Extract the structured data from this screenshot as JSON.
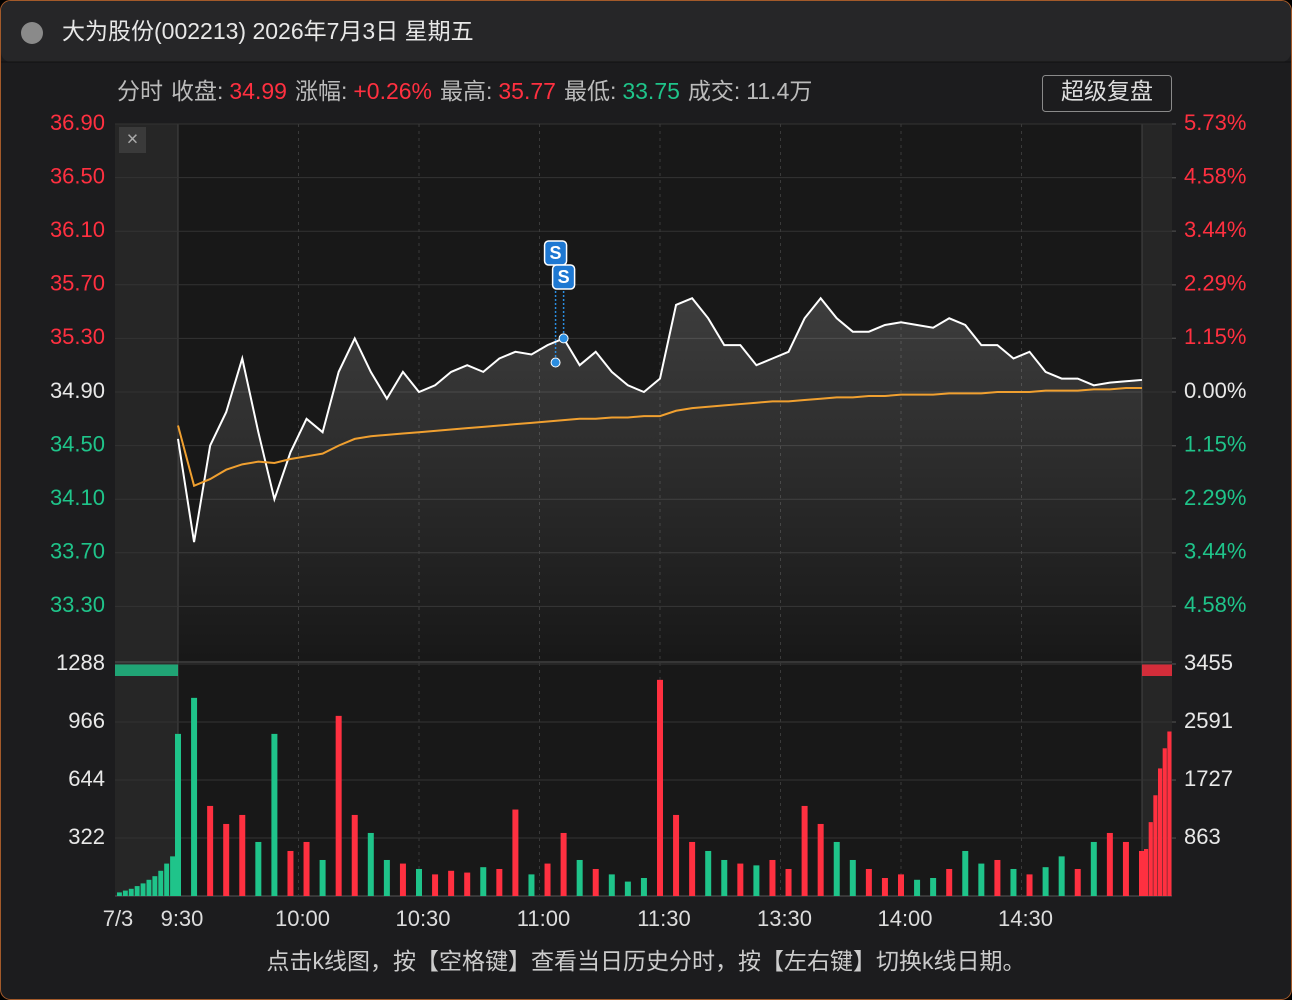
{
  "header": {
    "title": "大为股份(002213) 2026年7月3日 星期五"
  },
  "info": {
    "mode": "分时",
    "items": [
      {
        "label": "收盘:",
        "value": "34.99",
        "color": "#ff3040"
      },
      {
        "label": "涨幅:",
        "value": "+0.26%",
        "color": "#ff3040"
      },
      {
        "label": "最高:",
        "value": "35.77",
        "color": "#ff3040"
      },
      {
        "label": "最低:",
        "value": "33.75",
        "color": "#1fc48a"
      },
      {
        "label": "成交:",
        "value": "11.4万",
        "color": "#bbbbbb"
      }
    ]
  },
  "button": "超级复盘",
  "footer": "点击k线图，按【空格键】查看当日历史分时，按【左右键】切换k线日期。",
  "chart_data": [
    {
      "type": "line",
      "date_label": "7/3",
      "x": [
        "9:30",
        "9:34",
        "9:38",
        "9:42",
        "9:46",
        "9:50",
        "9:54",
        "9:58",
        "10:02",
        "10:06",
        "10:10",
        "10:14",
        "10:18",
        "10:22",
        "10:26",
        "10:30",
        "10:34",
        "10:38",
        "10:42",
        "10:46",
        "10:50",
        "10:54",
        "10:58",
        "11:02",
        "11:06",
        "11:10",
        "11:14",
        "11:18",
        "11:22",
        "11:26",
        "11:30",
        "13:04",
        "13:08",
        "13:12",
        "13:16",
        "13:20",
        "13:24",
        "13:28",
        "13:32",
        "13:36",
        "13:40",
        "13:44",
        "13:48",
        "13:52",
        "13:56",
        "14:00",
        "14:04",
        "14:08",
        "14:12",
        "14:16",
        "14:20",
        "14:24",
        "14:28",
        "14:32",
        "14:36",
        "14:40",
        "14:44",
        "14:48",
        "14:52",
        "14:56",
        "15:00"
      ],
      "series": [
        {
          "color": "#ffffff",
          "values": [
            34.55,
            33.78,
            34.5,
            34.75,
            35.15,
            34.6,
            34.1,
            34.45,
            34.7,
            34.6,
            35.05,
            35.3,
            35.05,
            34.85,
            35.05,
            34.9,
            34.95,
            35.05,
            35.1,
            35.05,
            35.15,
            35.2,
            35.18,
            35.25,
            35.3,
            35.1,
            35.2,
            35.05,
            34.95,
            34.9,
            35.0,
            35.55,
            35.6,
            35.45,
            35.25,
            35.25,
            35.1,
            35.15,
            35.2,
            35.45,
            35.6,
            35.45,
            35.35,
            35.35,
            35.4,
            35.42,
            35.4,
            35.38,
            35.45,
            35.4,
            35.25,
            35.25,
            35.15,
            35.2,
            35.05,
            35.0,
            35.0,
            34.95,
            34.97,
            34.98,
            34.99
          ]
        },
        {
          "color": "#f0a030",
          "values": [
            34.65,
            34.2,
            34.25,
            34.32,
            34.36,
            34.38,
            34.37,
            34.4,
            34.42,
            34.44,
            34.5,
            34.55,
            34.57,
            34.58,
            34.59,
            34.6,
            34.61,
            34.62,
            34.63,
            34.64,
            34.65,
            34.66,
            34.67,
            34.68,
            34.69,
            34.7,
            34.7,
            34.71,
            34.71,
            34.72,
            34.72,
            34.76,
            34.78,
            34.79,
            34.8,
            34.81,
            34.82,
            34.83,
            34.83,
            34.84,
            34.85,
            34.86,
            34.86,
            34.87,
            34.87,
            34.88,
            34.88,
            34.88,
            34.89,
            34.89,
            34.89,
            34.9,
            34.9,
            34.9,
            34.91,
            34.91,
            34.91,
            34.92,
            34.92,
            34.93,
            34.93
          ]
        }
      ],
      "ylim": [
        32.9,
        36.9
      ],
      "yticks": [
        {
          "value": 36.9,
          "label": "36.90"
        },
        {
          "value": 36.5,
          "label": "36.50"
        },
        {
          "value": 36.1,
          "label": "36.10"
        },
        {
          "value": 35.7,
          "label": "35.70"
        },
        {
          "value": 35.3,
          "label": "35.30"
        },
        {
          "value": 34.9,
          "label": "34.90"
        },
        {
          "value": 34.5,
          "label": "34.50"
        },
        {
          "value": 34.1,
          "label": "34.10"
        },
        {
          "value": 33.7,
          "label": "33.70"
        },
        {
          "value": 33.3,
          "label": "33.30"
        }
      ],
      "y2lim": [
        -5.73,
        5.73
      ],
      "y2ticks": [
        {
          "value": 5.73,
          "label": "5.73%"
        },
        {
          "value": 4.58,
          "label": "4.58%"
        },
        {
          "value": 3.44,
          "label": "3.44%"
        },
        {
          "value": 2.29,
          "label": "2.29%"
        },
        {
          "value": 1.15,
          "label": "1.15%"
        },
        {
          "value": 0,
          "label": "0.00%"
        },
        {
          "value": -1.15,
          "label": "1.15%"
        },
        {
          "value": -2.29,
          "label": "2.29%"
        },
        {
          "value": -3.44,
          "label": "3.44%"
        },
        {
          "value": -4.58,
          "label": "4.58%"
        }
      ],
      "xticks": [
        "9:30",
        "10:00",
        "10:30",
        "11:00",
        "11:30",
        "13:30",
        "14:00",
        "14:30"
      ],
      "markers": [
        {
          "time": "11:04",
          "price": 35.12,
          "label": "S"
        },
        {
          "time": "11:06",
          "price": 35.3,
          "label": "S"
        }
      ],
      "grid": true,
      "up_color": "#ff3040",
      "down_color": "#1fc48a"
    },
    {
      "type": "bar",
      "values": [
        900,
        1100,
        500,
        400,
        450,
        300,
        900,
        250,
        300,
        200,
        1000,
        450,
        350,
        200,
        180,
        150,
        120,
        140,
        130,
        160,
        150,
        480,
        120,
        180,
        350,
        200,
        150,
        120,
        80,
        100,
        1200,
        450,
        300,
        250,
        200,
        180,
        170,
        200,
        150,
        500,
        400,
        300,
        200,
        150,
        100,
        120,
        90,
        100,
        150,
        250,
        180,
        200,
        150,
        120,
        160,
        220,
        150,
        300,
        350,
        300,
        250
      ],
      "pre_values": [
        20,
        30,
        40,
        55,
        70,
        90,
        110,
        140,
        180,
        220
      ],
      "post_values": [
        700,
        1100,
        1500,
        1900,
        2200,
        2450
      ],
      "ylim": [
        0,
        1288
      ],
      "yticks": [
        1288,
        966,
        644,
        322
      ],
      "y2lim": [
        0,
        3455
      ],
      "y2ticks": [
        3455,
        2591,
        1727,
        863
      ],
      "up_color": "#ff3040",
      "down_color": "#1fc48a"
    }
  ]
}
